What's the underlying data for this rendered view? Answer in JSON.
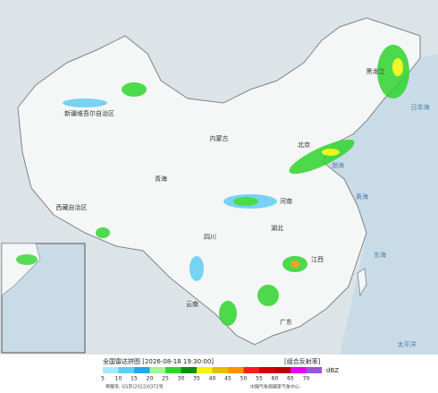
{
  "map": {
    "labels": [
      "新疆维吾尔自治区",
      "西藏自治区",
      "青海",
      "内蒙古",
      "四川",
      "湖北",
      "广东",
      "黑龙江",
      "北京",
      "河南",
      "云南",
      "江西"
    ],
    "seas": [
      "渤海",
      "黄海",
      "东海",
      "太平洋",
      "日本海"
    ]
  },
  "legend": {
    "title": "全国雷达拼图 [2026-08-18 19:30:00]",
    "product": "[组合反射率]",
    "unit": "dBZ",
    "levels": [
      5,
      10,
      15,
      20,
      25,
      30,
      35,
      40,
      45,
      50,
      55,
      60,
      65,
      70
    ],
    "colors": [
      "#a6e9fb",
      "#60cdf3",
      "#28a4ec",
      "#a3f59a",
      "#2fd62f",
      "#118c11",
      "#f5f500",
      "#e6be00",
      "#ff9000",
      "#ff1a1a",
      "#d60000",
      "#bc0000",
      "#e900e9",
      "#9a55d6"
    ]
  },
  "footer": {
    "approval": "审图号: GS京(2022)0372号",
    "source": "中国气象局国家气象中心"
  }
}
